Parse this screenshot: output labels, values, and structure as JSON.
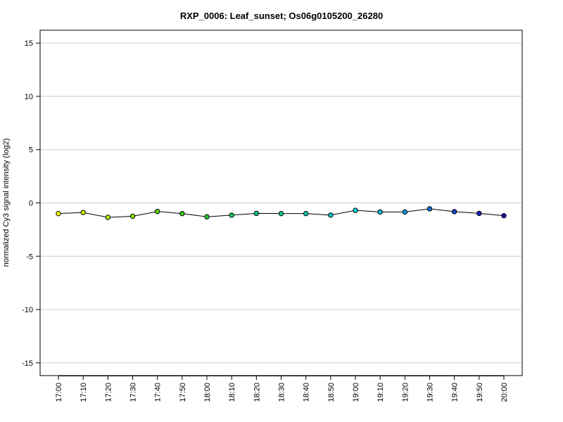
{
  "chart_data": {
    "type": "line",
    "title": "RXP_0006: Leaf_sunset; Os06g0105200_26280",
    "xlabel": "",
    "ylabel": "normalized Cy3 signal intensity (log2)",
    "ylim": [
      -16.2,
      16.2
    ],
    "yticks": [
      -15,
      -10,
      -5,
      0,
      5,
      10,
      15
    ],
    "ytick_labels": [
      "-15",
      "-10",
      "-5",
      "0",
      "5",
      "10",
      "15"
    ],
    "grid": "horizontal",
    "categories": [
      "17:00",
      "17:10",
      "17:20",
      "17:30",
      "17:40",
      "17:50",
      "18:00",
      "18:10",
      "18:20",
      "18:30",
      "18:40",
      "18:50",
      "19:00",
      "19:10",
      "19:20",
      "19:30",
      "19:40",
      "19:50",
      "20:00"
    ],
    "series": [
      {
        "values": [
          -1.0,
          -0.9,
          -1.35,
          -1.25,
          -0.8,
          -1.0,
          -1.3,
          -1.15,
          -0.98,
          -1.0,
          -1.0,
          -1.15,
          -0.7,
          -0.85,
          -0.85,
          -0.55,
          -0.82,
          -0.98,
          -1.2
        ],
        "colors": [
          "#ffff00",
          "#d6f000",
          "#b2ec00",
          "#8ae000",
          "#5cd400",
          "#3ccc1c",
          "#20c83c",
          "#18c85c",
          "#10c878",
          "#10c894",
          "#10c8b0",
          "#10c8c8",
          "#10e0e0",
          "#20c0e8",
          "#1098e0",
          "#1070d0",
          "#1048d0",
          "#1028c0",
          "#1010b0"
        ]
      }
    ]
  }
}
